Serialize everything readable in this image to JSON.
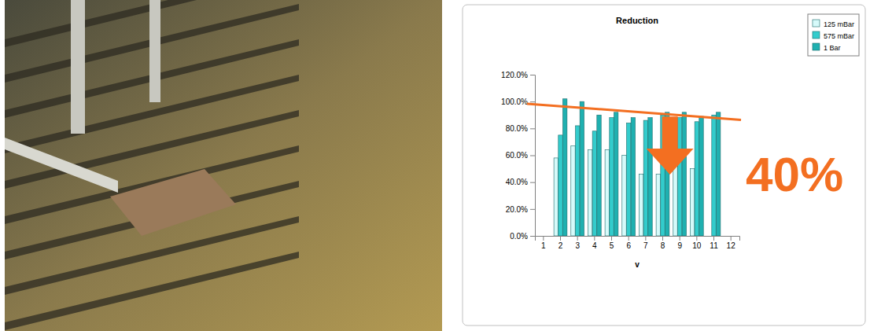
{
  "chart_data": {
    "type": "bar",
    "title": "Reduction",
    "x_label": "v",
    "categories": [
      "1",
      "2",
      "3",
      "4",
      "5",
      "6",
      "7",
      "8",
      "9",
      "10",
      "11",
      "12"
    ],
    "series": [
      {
        "name": "125 mBar",
        "color": "#d6fafa",
        "values": [
          null,
          58,
          67,
          64,
          64,
          60,
          46,
          46,
          52,
          50,
          null,
          null
        ]
      },
      {
        "name": "575 mBar",
        "color": "#33cccc",
        "values": [
          null,
          75,
          82,
          78,
          88,
          84,
          86,
          90,
          88,
          85,
          90,
          null
        ]
      },
      {
        "name": "1 Bar",
        "color": "#1fb0b0",
        "values": [
          null,
          102,
          100,
          90,
          92,
          88,
          88,
          92,
          92,
          89,
          92,
          null
        ]
      }
    ],
    "ylim": [
      0,
      120
    ],
    "yticks": [
      {
        "value": 0,
        "label": "0.0%"
      },
      {
        "value": 20,
        "label": "20.0%"
      },
      {
        "value": 40,
        "label": "40.0%"
      },
      {
        "value": 60,
        "label": "60.0%"
      },
      {
        "value": 80,
        "label": "80.0%"
      },
      {
        "value": 100,
        "label": "100.0%"
      },
      {
        "value": 120,
        "label": "120.0%"
      }
    ],
    "grid": false,
    "legend": "top-right",
    "annotation": "40%"
  }
}
